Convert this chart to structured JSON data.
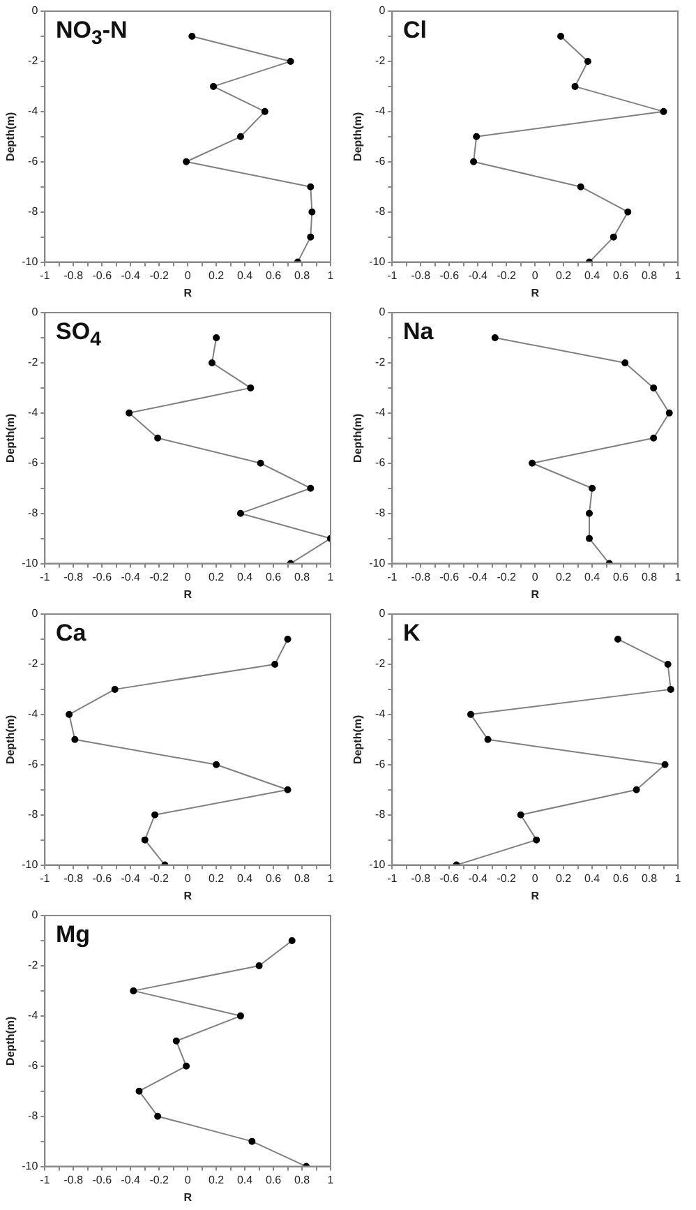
{
  "chart_data": [
    {
      "type": "line",
      "title": "NO$_{3}$-N",
      "xlabel": "R",
      "ylabel": "Depth(m)",
      "x": [
        0.03,
        0.72,
        0.18,
        0.54,
        0.37,
        -0.01,
        0.86,
        0.87,
        0.86,
        0.77
      ],
      "values": [
        -1,
        -2,
        -3,
        -4,
        -5,
        -6,
        -7,
        -8,
        -9,
        -10
      ],
      "color": "#808080",
      "marker": "circle",
      "xlim": [
        -1,
        1
      ],
      "xticks": [
        -1,
        {
          "value": -0.9,
          "label": null
        },
        -0.8,
        {
          "value": -0.7,
          "label": null
        },
        -0.6,
        {
          "value": -0.5,
          "label": null
        },
        -0.4,
        {
          "value": -0.3,
          "label": null
        },
        -0.2,
        {
          "value": -0.1,
          "label": null
        },
        0,
        {
          "value": 0.1,
          "label": null
        },
        0.2,
        {
          "value": 0.3,
          "label": null
        },
        0.4,
        {
          "value": 0.5,
          "label": null
        },
        0.6,
        {
          "value": 0.7,
          "label": null
        },
        0.8,
        {
          "value": 0.9,
          "label": null
        },
        1
      ],
      "ylim": [
        -10,
        0
      ],
      "yticks": [
        -10,
        {
          "value": -9,
          "label": null
        },
        -8,
        {
          "value": -7,
          "label": null
        },
        -6,
        {
          "value": -5,
          "label": null
        },
        -4,
        {
          "value": -3,
          "label": null
        },
        -2,
        {
          "value": -1,
          "label": null
        },
        0
      ]
    },
    {
      "type": "line",
      "title": "Cl",
      "xlabel": "R",
      "ylabel": "Depth(m)",
      "x": [
        0.18,
        0.37,
        0.28,
        0.9,
        -0.41,
        -0.43,
        0.32,
        0.65,
        0.55,
        0.38
      ],
      "values": [
        -1,
        -2,
        -3,
        -4,
        -5,
        -6,
        -7,
        -8,
        -9,
        -10
      ],
      "color": "#808080",
      "marker": "circle",
      "xlim": [
        -1,
        1
      ],
      "xticks": [
        -1,
        {
          "value": -0.9,
          "label": null
        },
        -0.8,
        {
          "value": -0.7,
          "label": null
        },
        -0.6,
        {
          "value": -0.5,
          "label": null
        },
        -0.4,
        {
          "value": -0.3,
          "label": null
        },
        -0.2,
        {
          "value": -0.1,
          "label": null
        },
        0,
        {
          "value": 0.1,
          "label": null
        },
        0.2,
        {
          "value": 0.3,
          "label": null
        },
        0.4,
        {
          "value": 0.5,
          "label": null
        },
        0.6,
        {
          "value": 0.7,
          "label": null
        },
        0.8,
        {
          "value": 0.9,
          "label": null
        },
        1
      ],
      "ylim": [
        -10,
        0
      ],
      "yticks": [
        -10,
        {
          "value": -9,
          "label": null
        },
        -8,
        {
          "value": -7,
          "label": null
        },
        -6,
        {
          "value": -5,
          "label": null
        },
        -4,
        {
          "value": -3,
          "label": null
        },
        -2,
        {
          "value": -1,
          "label": null
        },
        0
      ]
    },
    {
      "type": "line",
      "title": "SO$_{4}$",
      "xlabel": "R",
      "ylabel": "Depth(m)",
      "x": [
        0.2,
        0.17,
        0.44,
        -0.41,
        -0.21,
        0.51,
        0.86,
        0.37,
        1.0,
        0.72
      ],
      "values": [
        -1,
        -2,
        -3,
        -4,
        -5,
        -6,
        -7,
        -8,
        -9,
        -10
      ],
      "color": "#808080",
      "marker": "circle",
      "xlim": [
        -1,
        1
      ],
      "xticks": [
        -1,
        {
          "value": -0.9,
          "label": null
        },
        -0.8,
        {
          "value": -0.7,
          "label": null
        },
        -0.6,
        {
          "value": -0.5,
          "label": null
        },
        -0.4,
        {
          "value": -0.3,
          "label": null
        },
        -0.2,
        {
          "value": -0.1,
          "label": null
        },
        0,
        {
          "value": 0.1,
          "label": null
        },
        0.2,
        {
          "value": 0.3,
          "label": null
        },
        0.4,
        {
          "value": 0.5,
          "label": null
        },
        0.6,
        {
          "value": 0.7,
          "label": null
        },
        0.8,
        {
          "value": 0.9,
          "label": null
        },
        1
      ],
      "ylim": [
        -10,
        0
      ],
      "yticks": [
        -10,
        {
          "value": -9,
          "label": null
        },
        -8,
        {
          "value": -7,
          "label": null
        },
        -6,
        {
          "value": -5,
          "label": null
        },
        -4,
        {
          "value": -3,
          "label": null
        },
        -2,
        {
          "value": -1,
          "label": null
        },
        0
      ]
    },
    {
      "type": "line",
      "title": "Na",
      "xlabel": "R",
      "ylabel": "Depth(m)",
      "x": [
        -0.28,
        0.63,
        0.83,
        0.94,
        0.83,
        -0.02,
        0.4,
        0.38,
        0.38,
        0.52
      ],
      "values": [
        -1,
        -2,
        -3,
        -4,
        -5,
        -6,
        -7,
        -8,
        -9,
        -10
      ],
      "color": "#808080",
      "marker": "circle",
      "xlim": [
        -1,
        1
      ],
      "xticks": [
        -1,
        {
          "value": -0.9,
          "label": null
        },
        -0.8,
        {
          "value": -0.7,
          "label": null
        },
        -0.6,
        {
          "value": -0.5,
          "label": null
        },
        -0.4,
        {
          "value": -0.3,
          "label": null
        },
        -0.2,
        {
          "value": -0.1,
          "label": null
        },
        0,
        {
          "value": 0.1,
          "label": null
        },
        0.2,
        {
          "value": 0.3,
          "label": null
        },
        0.4,
        {
          "value": 0.5,
          "label": null
        },
        0.6,
        {
          "value": 0.7,
          "label": null
        },
        0.8,
        {
          "value": 0.9,
          "label": null
        },
        1
      ],
      "ylim": [
        -10,
        0
      ],
      "yticks": [
        -10,
        {
          "value": -9,
          "label": null
        },
        -8,
        {
          "value": -7,
          "label": null
        },
        -6,
        {
          "value": -5,
          "label": null
        },
        -4,
        {
          "value": -3,
          "label": null
        },
        -2,
        {
          "value": -1,
          "label": null
        },
        0
      ]
    },
    {
      "type": "line",
      "title": "Ca",
      "xlabel": "R",
      "ylabel": "Depth(m)",
      "x": [
        0.7,
        0.61,
        -0.51,
        -0.83,
        -0.79,
        0.2,
        0.7,
        -0.23,
        -0.3,
        -0.16
      ],
      "values": [
        -1,
        -2,
        -3,
        -4,
        -5,
        -6,
        -7,
        -8,
        -9,
        -10
      ],
      "color": "#808080",
      "marker": "circle",
      "xlim": [
        -1,
        1
      ],
      "xticks": [
        -1,
        {
          "value": -0.9,
          "label": null
        },
        -0.8,
        {
          "value": -0.7,
          "label": null
        },
        -0.6,
        {
          "value": -0.5,
          "label": null
        },
        -0.4,
        {
          "value": -0.3,
          "label": null
        },
        -0.2,
        {
          "value": -0.1,
          "label": null
        },
        0,
        {
          "value": 0.1,
          "label": null
        },
        0.2,
        {
          "value": 0.3,
          "label": null
        },
        0.4,
        {
          "value": 0.5,
          "label": null
        },
        0.6,
        {
          "value": 0.7,
          "label": null
        },
        0.8,
        {
          "value": 0.9,
          "label": null
        },
        1
      ],
      "ylim": [
        -10,
        0
      ],
      "yticks": [
        -10,
        {
          "value": -9,
          "label": null
        },
        -8,
        {
          "value": -7,
          "label": null
        },
        -6,
        {
          "value": -5,
          "label": null
        },
        -4,
        {
          "value": -3,
          "label": null
        },
        -2,
        {
          "value": -1,
          "label": null
        },
        0
      ]
    },
    {
      "type": "line",
      "title": "K",
      "xlabel": "R",
      "ylabel": "Depth(m)",
      "x": [
        0.58,
        0.93,
        0.95,
        -0.45,
        -0.33,
        0.91,
        0.71,
        -0.1,
        0.01,
        -0.55
      ],
      "values": [
        -1,
        -2,
        -3,
        -4,
        -5,
        -6,
        -7,
        -8,
        -9,
        -10
      ],
      "color": "#808080",
      "marker": "circle",
      "xlim": [
        -1,
        1
      ],
      "xticks": [
        -1,
        {
          "value": -0.9,
          "label": null
        },
        -0.8,
        {
          "value": -0.7,
          "label": null
        },
        -0.6,
        {
          "value": -0.5,
          "label": null
        },
        -0.4,
        {
          "value": -0.3,
          "label": null
        },
        -0.2,
        {
          "value": -0.1,
          "label": null
        },
        0,
        {
          "value": 0.1,
          "label": null
        },
        0.2,
        {
          "value": 0.3,
          "label": null
        },
        0.4,
        {
          "value": 0.5,
          "label": null
        },
        0.6,
        {
          "value": 0.7,
          "label": null
        },
        0.8,
        {
          "value": 0.9,
          "label": null
        },
        1
      ],
      "ylim": [
        -10,
        0
      ],
      "yticks": [
        -10,
        {
          "value": -9,
          "label": null
        },
        -8,
        {
          "value": -7,
          "label": null
        },
        -6,
        {
          "value": -5,
          "label": null
        },
        -4,
        {
          "value": -3,
          "label": null
        },
        -2,
        {
          "value": -1,
          "label": null
        },
        0
      ]
    },
    {
      "type": "line",
      "title": "Mg",
      "xlabel": "R",
      "ylabel": "Depth(m)",
      "x": [
        0.73,
        0.5,
        -0.38,
        0.37,
        -0.08,
        -0.01,
        -0.34,
        -0.21,
        0.45,
        0.83
      ],
      "values": [
        -1,
        -2,
        -3,
        -4,
        -5,
        -6,
        -7,
        -8,
        -9,
        -10
      ],
      "color": "#808080",
      "marker": "circle",
      "xlim": [
        -1,
        1
      ],
      "xticks": [
        -1,
        {
          "value": -0.9,
          "label": null
        },
        -0.8,
        {
          "value": -0.7,
          "label": null
        },
        -0.6,
        {
          "value": -0.5,
          "label": null
        },
        -0.4,
        {
          "value": -0.3,
          "label": null
        },
        -0.2,
        {
          "value": -0.1,
          "label": null
        },
        0,
        {
          "value": 0.1,
          "label": null
        },
        0.2,
        {
          "value": 0.3,
          "label": null
        },
        0.4,
        {
          "value": 0.5,
          "label": null
        },
        0.6,
        {
          "value": 0.7,
          "label": null
        },
        0.8,
        {
          "value": 0.9,
          "label": null
        },
        1
      ],
      "ylim": [
        -10,
        0
      ],
      "yticks": [
        -10,
        {
          "value": -9,
          "label": null
        },
        -8,
        {
          "value": -7,
          "label": null
        },
        -6,
        {
          "value": -5,
          "label": null
        },
        -4,
        {
          "value": -3,
          "label": null
        },
        -2,
        {
          "value": -1,
          "label": null
        },
        0
      ]
    }
  ]
}
